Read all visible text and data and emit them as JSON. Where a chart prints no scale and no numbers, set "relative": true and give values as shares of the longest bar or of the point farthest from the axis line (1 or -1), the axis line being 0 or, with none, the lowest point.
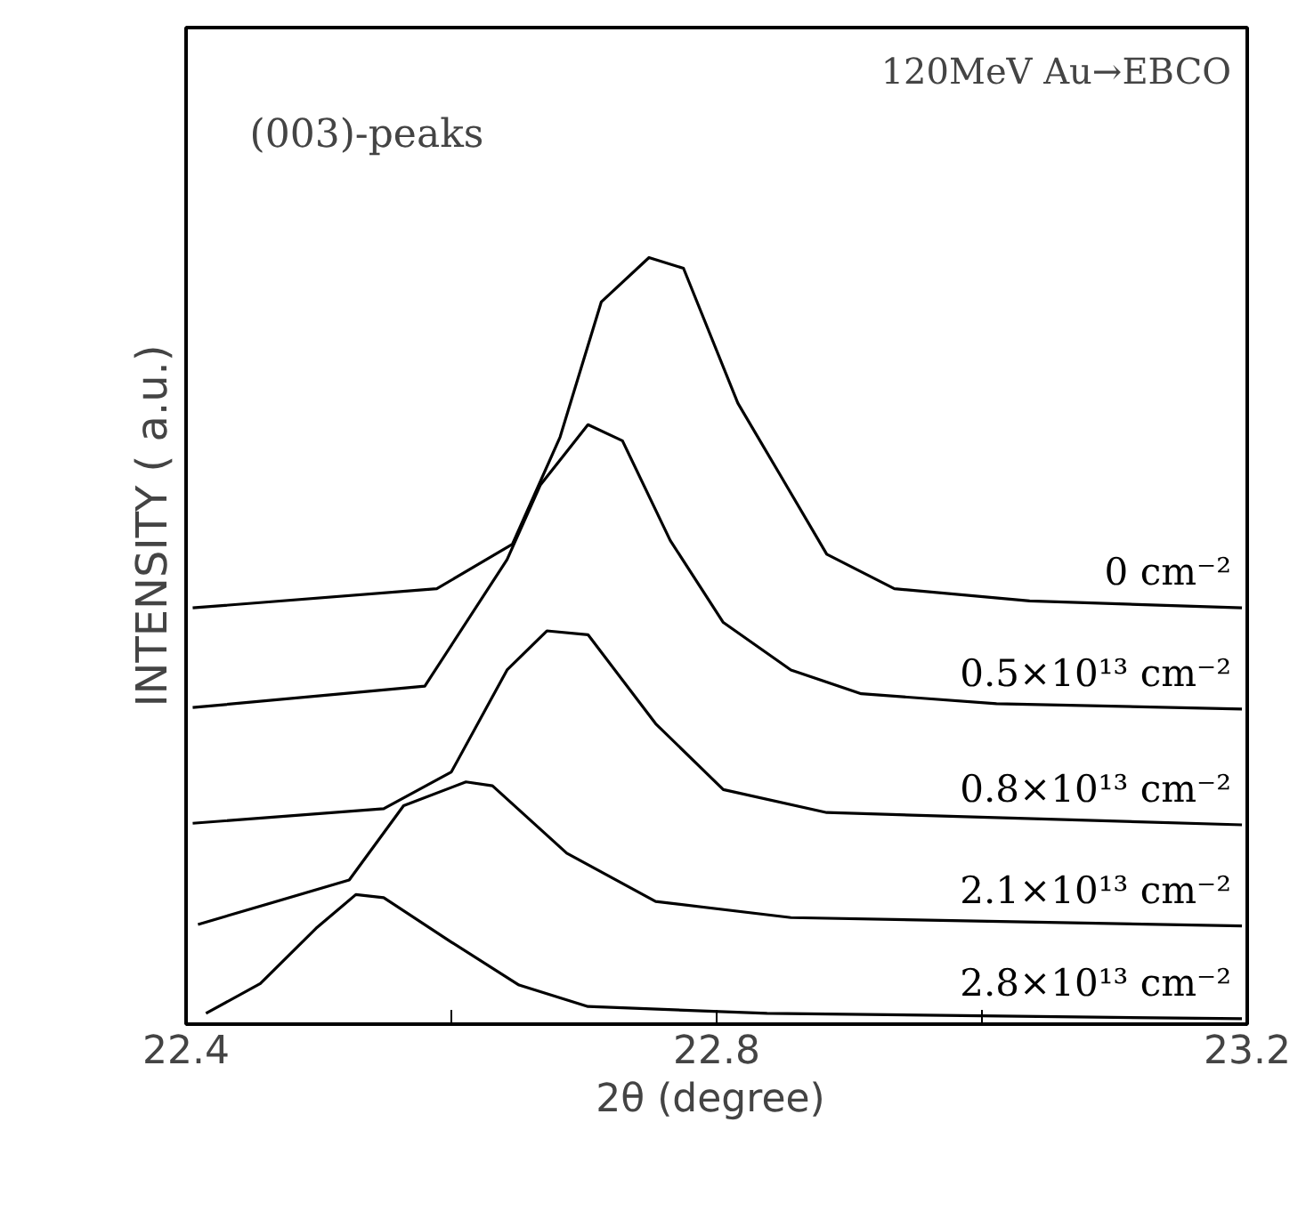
{
  "chart_data": {
    "type": "line",
    "relative": true,
    "xlabel": "2θ  (degree)",
    "ylabel": "INTENSITY ( a.u.)",
    "annotations": [
      "(003)-peaks",
      "120MeV Au→EBCO"
    ],
    "xlim": [
      22.4,
      23.2
    ],
    "xticks": [
      22.4,
      {
        "value": 22.6,
        "label": null
      },
      22.8,
      {
        "value": 23.0,
        "label": null
      },
      23.2
    ],
    "grid": false,
    "legend": false,
    "line_style": "solid",
    "marker": "none",
    "series": [
      {
        "name": "0 cm⁻²",
        "color": "#000000",
        "x": [
          22.405,
          22.589,
          22.646,
          22.682,
          22.713,
          22.749,
          22.775,
          22.816,
          22.847,
          22.883,
          22.934,
          23.036,
          23.196
        ],
        "values": [
          0.543,
          0.568,
          0.626,
          0.766,
          0.942,
          1.0,
          0.986,
          0.81,
          0.719,
          0.613,
          0.568,
          0.552,
          0.543
        ]
      },
      {
        "name": "0.5×10¹³ cm⁻²",
        "color": "#000000",
        "x": [
          22.405,
          22.58,
          22.642,
          22.667,
          22.703,
          22.729,
          22.765,
          22.805,
          22.856,
          22.909,
          23.011,
          23.196
        ],
        "values": [
          0.413,
          0.441,
          0.606,
          0.703,
          0.782,
          0.761,
          0.631,
          0.524,
          0.462,
          0.431,
          0.418,
          0.411
        ]
      },
      {
        "name": "0.8×10¹³ cm⁻²",
        "color": "#000000",
        "x": [
          22.405,
          22.549,
          22.6,
          22.642,
          22.672,
          22.703,
          22.754,
          22.805,
          22.883,
          23.196
        ],
        "values": [
          0.262,
          0.281,
          0.329,
          0.462,
          0.513,
          0.508,
          0.392,
          0.306,
          0.276,
          0.26
        ]
      },
      {
        "name": "2.1×10¹³ cm⁻²",
        "color": "#000000",
        "x": [
          22.409,
          22.523,
          22.564,
          22.611,
          22.631,
          22.687,
          22.754,
          22.856,
          23.196
        ],
        "values": [
          0.13,
          0.188,
          0.285,
          0.316,
          0.311,
          0.223,
          0.16,
          0.139,
          0.128
        ]
      },
      {
        "name": "2.8×10¹³ cm⁻²",
        "color": "#000000",
        "x": [
          22.415,
          22.456,
          22.498,
          22.528,
          22.549,
          22.6,
          22.651,
          22.703,
          22.838,
          23.196
        ],
        "values": [
          0.014,
          0.053,
          0.125,
          0.169,
          0.165,
          0.107,
          0.051,
          0.023,
          0.014,
          0.007
        ]
      }
    ]
  }
}
